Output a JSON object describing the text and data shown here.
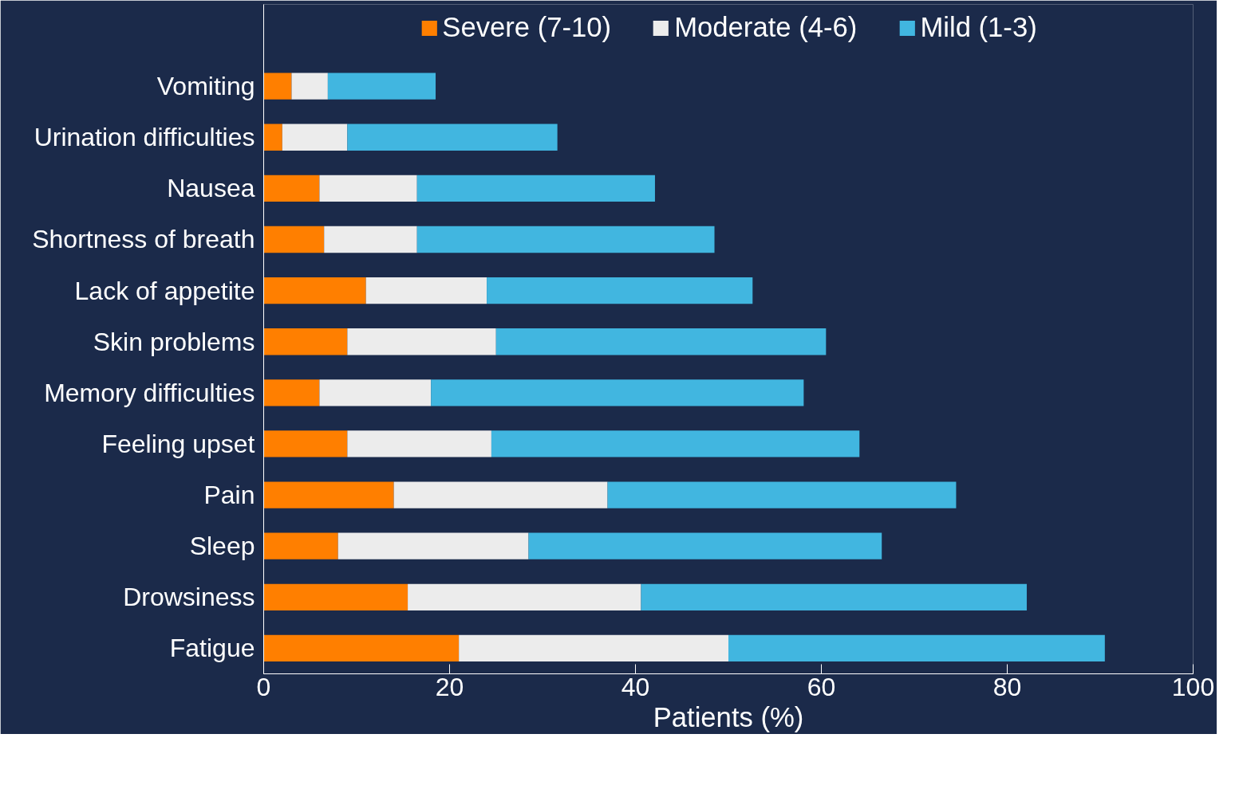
{
  "chart_data": {
    "type": "bar",
    "orientation": "horizontal",
    "stacked": true,
    "xlabel": "Patients (%)",
    "categories": [
      "Vomiting",
      "Urination difficulties",
      "Nausea",
      "Shortness of breath",
      "Lack of appetite",
      "Skin problems",
      "Memory difficulties",
      "Feeling upset",
      "Pain",
      "Sleep",
      "Drowsiness",
      "Fatigue"
    ],
    "series": [
      {
        "name": "Severe (7-10)",
        "color": "#ff7f00",
        "values": [
          3.0,
          2.0,
          6.0,
          6.5,
          11.0,
          9.0,
          6.0,
          9.0,
          14.0,
          8.0,
          15.5,
          21.0
        ]
      },
      {
        "name": "Moderate (4-6)",
        "color": "#ececec",
        "values": [
          3.9,
          7.0,
          10.5,
          10.0,
          13.0,
          16.0,
          12.0,
          15.5,
          23.0,
          20.5,
          25.1,
          29.0
        ]
      },
      {
        "name": "Mild (1-3)",
        "color": "#41b6e0",
        "values": [
          11.6,
          22.6,
          25.6,
          32.0,
          28.6,
          35.5,
          40.1,
          39.6,
          37.5,
          38.0,
          41.5,
          40.5
        ]
      }
    ],
    "xlim": [
      0,
      100
    ],
    "xticks": [
      0,
      20,
      40,
      60,
      80,
      100
    ],
    "grid": false,
    "legend": "top"
  }
}
